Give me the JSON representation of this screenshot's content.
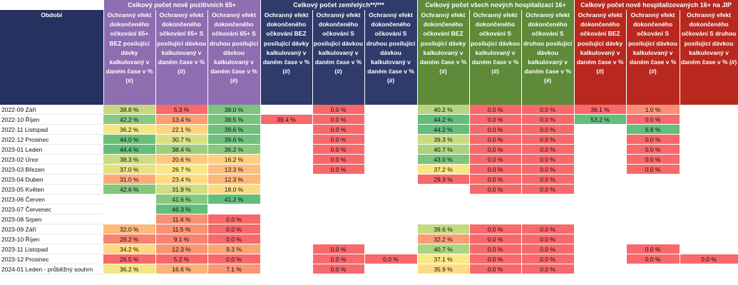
{
  "header": {
    "period_label": "Období",
    "groups": [
      {
        "title": "Celkový počet nově pozitivních 65+",
        "color": "g1",
        "cols": 3
      },
      {
        "title": "Celkový počet zemřelých**/***",
        "color": "g2",
        "cols": 3
      },
      {
        "title": "Celkový počet všech nových hospitalizací 16+",
        "color": "g3",
        "cols": 3
      },
      {
        "title": "Celkový počet nově hospitalizovaných 16+ na JIP",
        "color": "g4",
        "cols": 3
      }
    ],
    "columns": [
      "Ochranný efekt dokončeného očkování 65+ BEZ posilující dávky kalkulovaný v daném čase v % (#)",
      "Ochranný efekt dokončeného očkování 65+ S posilující dávkou kalkulovaný v daném čase v % (#)",
      "Ochranný efekt dokončeného očkování 65+ S druhou posilující dávkou kalkulovaný v daném čase v % (#)",
      "Ochranný efekt dokončeného očkování BEZ posilující dávky kalkulovaný v daném čase v % (#)",
      "Ochranný efekt dokončeného očkování S posilující dávkou kalkulovaný v daném čase v % (#)",
      "Ochranný efekt dokončeného očkování S druhou posilující dávkou kalkulovaný v daném čase v % (#)",
      "Ochranný efekt dokončeného očkování BEZ posilující dávky kalkulovaný v daném čase v % (#)",
      "Ochranný efekt dokončeného očkování S posilující dávkou kalkulovaný v daném čase v % (#)",
      "Ochranný efekt dokončeného očkování S druhou posilující dávkou kalkulovaný v daném čase v % (#)",
      "Ochranný efekt dokončeného očkování BEZ posilující dávky kalkulovaný v daném čase v % (#)",
      "Ochranný efekt dokončeného očkování S posilující dávkou kalkulovaný v daném čase v % (#)",
      "Ochranný efekt dokončeného očkování S druhou posilující dávkou kalkulovaný v daném čase v % (#)"
    ]
  },
  "colors": {
    "green": "#63be7b",
    "yellow": "#ffeb84",
    "red": "#f8696b"
  },
  "rows": [
    {
      "period": "2022-09 Září",
      "cells": [
        "38.8 %",
        "5.3 %",
        "38.0 %",
        "",
        "0.0 %",
        "",
        "40.2 %",
        "0.0 %",
        "0.0 %",
        "36.1 %",
        "1.0 %",
        ""
      ]
    },
    {
      "period": "2022-10 Říjen",
      "cells": [
        "42.2 %",
        "13.4 %",
        "38.5 %",
        "39.4 %",
        "0.0 %",
        "",
        "44.2 %",
        "0.0 %",
        "0.0 %",
        "53.2 %",
        "0.0 %",
        ""
      ]
    },
    {
      "period": "2022-11 Listopad",
      "cells": [
        "36.2 %",
        "22.1 %",
        "39.6 %",
        "",
        "0.0 %",
        "",
        "44.2 %",
        "0.0 %",
        "0.0 %",
        "",
        "6.8 %",
        ""
      ]
    },
    {
      "period": "2022-12 Prosinec",
      "cells": [
        "44.0 %",
        "30.7 %",
        "39.6 %",
        "",
        "0.0 %",
        "",
        "39.3 %",
        "0.0 %",
        "0.0 %",
        "",
        "0.0 %",
        ""
      ]
    },
    {
      "period": "2023-01 Leden",
      "cells": [
        "44.4 %",
        "38.4 %",
        "36.2 %",
        "",
        "0.0 %",
        "",
        "40.7 %",
        "0.0 %",
        "0.0 %",
        "",
        "0.0 %",
        ""
      ]
    },
    {
      "period": "2023-02 Únor",
      "cells": [
        "38.3 %",
        "20.6 %",
        "16.2 %",
        "",
        "0.0 %",
        "",
        "43.0 %",
        "0.0 %",
        "0.0 %",
        "",
        "0.0 %",
        ""
      ]
    },
    {
      "period": "2023-03 Březen",
      "cells": [
        "37.0 %",
        "26.7 %",
        "13.3 %",
        "",
        "0.0 %",
        "",
        "37.2 %",
        "0.0 %",
        "0.0 %",
        "",
        "0.0 %",
        ""
      ]
    },
    {
      "period": "2023-04 Duben",
      "cells": [
        "31.0 %",
        "23.4 %",
        "12.3 %",
        "",
        "",
        "",
        "29.3 %",
        "0.0 %",
        "0.0 %",
        "",
        "",
        ""
      ]
    },
    {
      "period": "2023-05 Květen",
      "cells": [
        "42.6 %",
        "31.9 %",
        "18.0 %",
        "",
        "",
        "",
        "",
        "0.0 %",
        "0.0 %",
        "",
        "",
        ""
      ]
    },
    {
      "period": "2023-06 Červen",
      "cells": [
        "",
        "41.6 %",
        "41.2 %",
        "",
        "",
        "",
        "",
        "",
        "",
        "",
        "",
        ""
      ]
    },
    {
      "period": "2023-07 Červenec",
      "cells": [
        "",
        "46.3 %",
        "",
        "",
        "",
        "",
        "",
        "",
        "",
        "",
        "",
        ""
      ]
    },
    {
      "period": "2023-08 Srpen",
      "cells": [
        "",
        "11.4 %",
        "0.0 %",
        "",
        "",
        "",
        "",
        "",
        "",
        "",
        "",
        ""
      ]
    },
    {
      "period": "2023-09 Září",
      "cells": [
        "32.0 %",
        "11.5 %",
        "0.0 %",
        "",
        "",
        "",
        "39.6 %",
        "0.0 %",
        "0.0 %",
        "",
        "",
        ""
      ]
    },
    {
      "period": "2023-10 Říjen",
      "cells": [
        "28.2 %",
        "9.1 %",
        "0.0 %",
        "",
        "",
        "",
        "32.2 %",
        "0.0 %",
        "0.0 %",
        "",
        "",
        ""
      ]
    },
    {
      "period": "2023-11 Listopad",
      "cells": [
        "34.2 %",
        "12.3 %",
        "9.3 %",
        "",
        "0.0 %",
        "",
        "40.7 %",
        "0.0 %",
        "0.0 %",
        "",
        "0.0 %",
        ""
      ]
    },
    {
      "period": "2023-12 Prosinec",
      "cells": [
        "26.5 %",
        "5.2 %",
        "0.0 %",
        "",
        "0.0 %",
        "0.0 %",
        "37.1 %",
        "0.0 %",
        "0.0 %",
        "",
        "0.0 %",
        "0.0 %"
      ]
    },
    {
      "period": "2024-01 Leden  - průběžný souhrn",
      "cells": [
        "36.2 %",
        "16.6 %",
        "7.1 %",
        "",
        "0.0 %",
        "",
        "35.9 %",
        "0.0 %",
        "0.0 %",
        "",
        "",
        ""
      ]
    }
  ]
}
